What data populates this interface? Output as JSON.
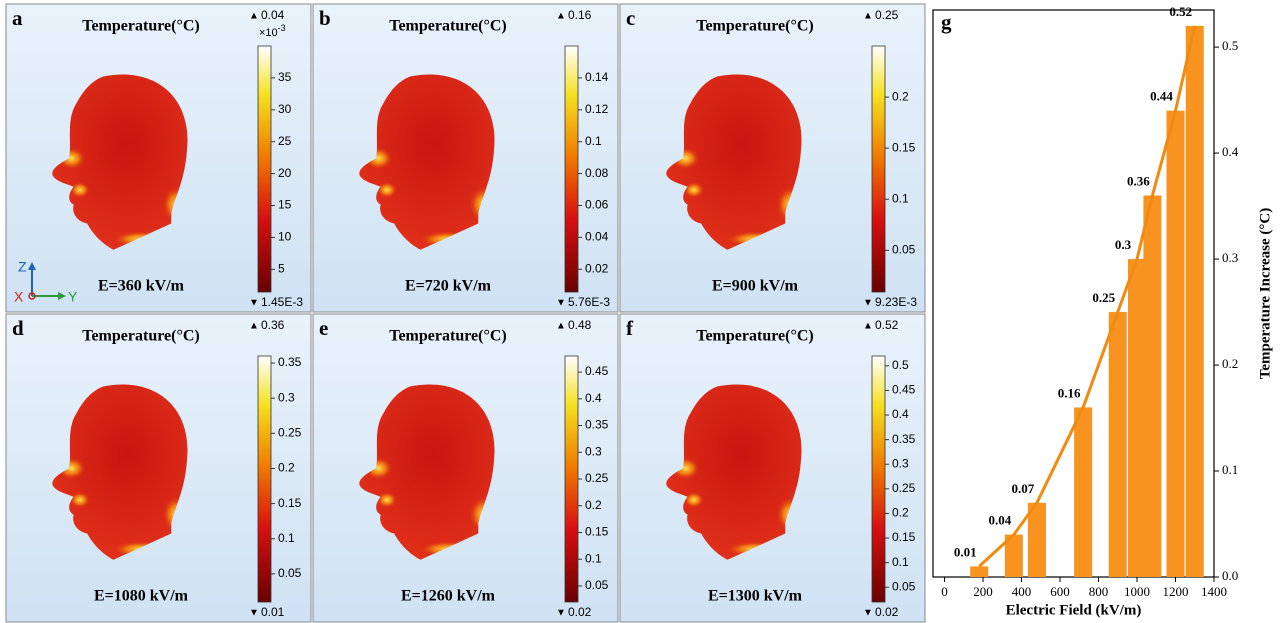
{
  "panels": [
    {
      "label": "a",
      "title": "Temperature(°C)",
      "max_label": "0.04",
      "exponent": "×10",
      "exponent_power": "-3",
      "min_label": "1.45E-3",
      "lim": [
        1.45,
        40
      ],
      "ticks": [
        5,
        10,
        15,
        20,
        25,
        30,
        35
      ],
      "field": "E=360 kV/m",
      "axes": [
        "Z",
        "X",
        "Y"
      ]
    },
    {
      "label": "b",
      "title": "Temperature(°C)",
      "max_label": "0.16",
      "min_label": "5.76E-3",
      "lim": [
        0.00576,
        0.16
      ],
      "ticks": [
        0.02,
        0.04,
        0.06,
        0.08,
        0.1,
        0.12,
        0.14
      ],
      "field": "E=720 kV/m"
    },
    {
      "label": "c",
      "title": "Temperature(°C)",
      "max_label": "0.25",
      "min_label": "9.23E-3",
      "lim": [
        0.00923,
        0.25
      ],
      "ticks": [
        0.05,
        0.1,
        0.15,
        0.2
      ],
      "field": "E=900 kV/m"
    },
    {
      "label": "d",
      "title": "Temperature(°C)",
      "max_label": "0.36",
      "min_label": "0.01",
      "lim": [
        0.01,
        0.36
      ],
      "ticks": [
        0.05,
        0.1,
        0.15,
        0.2,
        0.25,
        0.3,
        0.35
      ],
      "field": "E=1080 kV/m"
    },
    {
      "label": "e",
      "title": "Temperature(°C)",
      "max_label": "0.48",
      "min_label": "0.02",
      "lim": [
        0.02,
        0.48
      ],
      "ticks": [
        0.05,
        0.1,
        0.15,
        0.2,
        0.25,
        0.3,
        0.35,
        0.4,
        0.45
      ],
      "field": "E=1260 kV/m"
    },
    {
      "label": "f",
      "title": "Temperature(°C)",
      "max_label": "0.52",
      "min_label": "0.02",
      "lim": [
        0.02,
        0.52
      ],
      "ticks": [
        0.05,
        0.1,
        0.15,
        0.2,
        0.25,
        0.3,
        0.35,
        0.4,
        0.45,
        0.5
      ],
      "field": "E=1300 kV/m"
    }
  ],
  "chart_data": {
    "type": "bar",
    "label": "g",
    "x_label": "Electric Field (kV/m)",
    "y_label": "Temperature Increase (°C)",
    "x": [
      180,
      360,
      480,
      720,
      900,
      1000,
      1080,
      1200,
      1300
    ],
    "values": [
      0.01,
      0.04,
      0.07,
      0.16,
      0.25,
      0.3,
      0.36,
      0.44,
      0.52
    ],
    "bar_color": "#f7931e",
    "line_color": "#f08a10",
    "show_line": true,
    "show_value_labels": true,
    "xlim": [
      -60,
      1400
    ],
    "xticks": [
      0,
      200,
      400,
      600,
      800,
      1000,
      1200,
      1400
    ],
    "ylim": [
      0,
      0.535
    ],
    "yticks": [
      {
        "value": 0,
        "label": "0.0"
      },
      0.1,
      0.2,
      0.3,
      0.4,
      0.5
    ],
    "y_axis_side": "right"
  }
}
